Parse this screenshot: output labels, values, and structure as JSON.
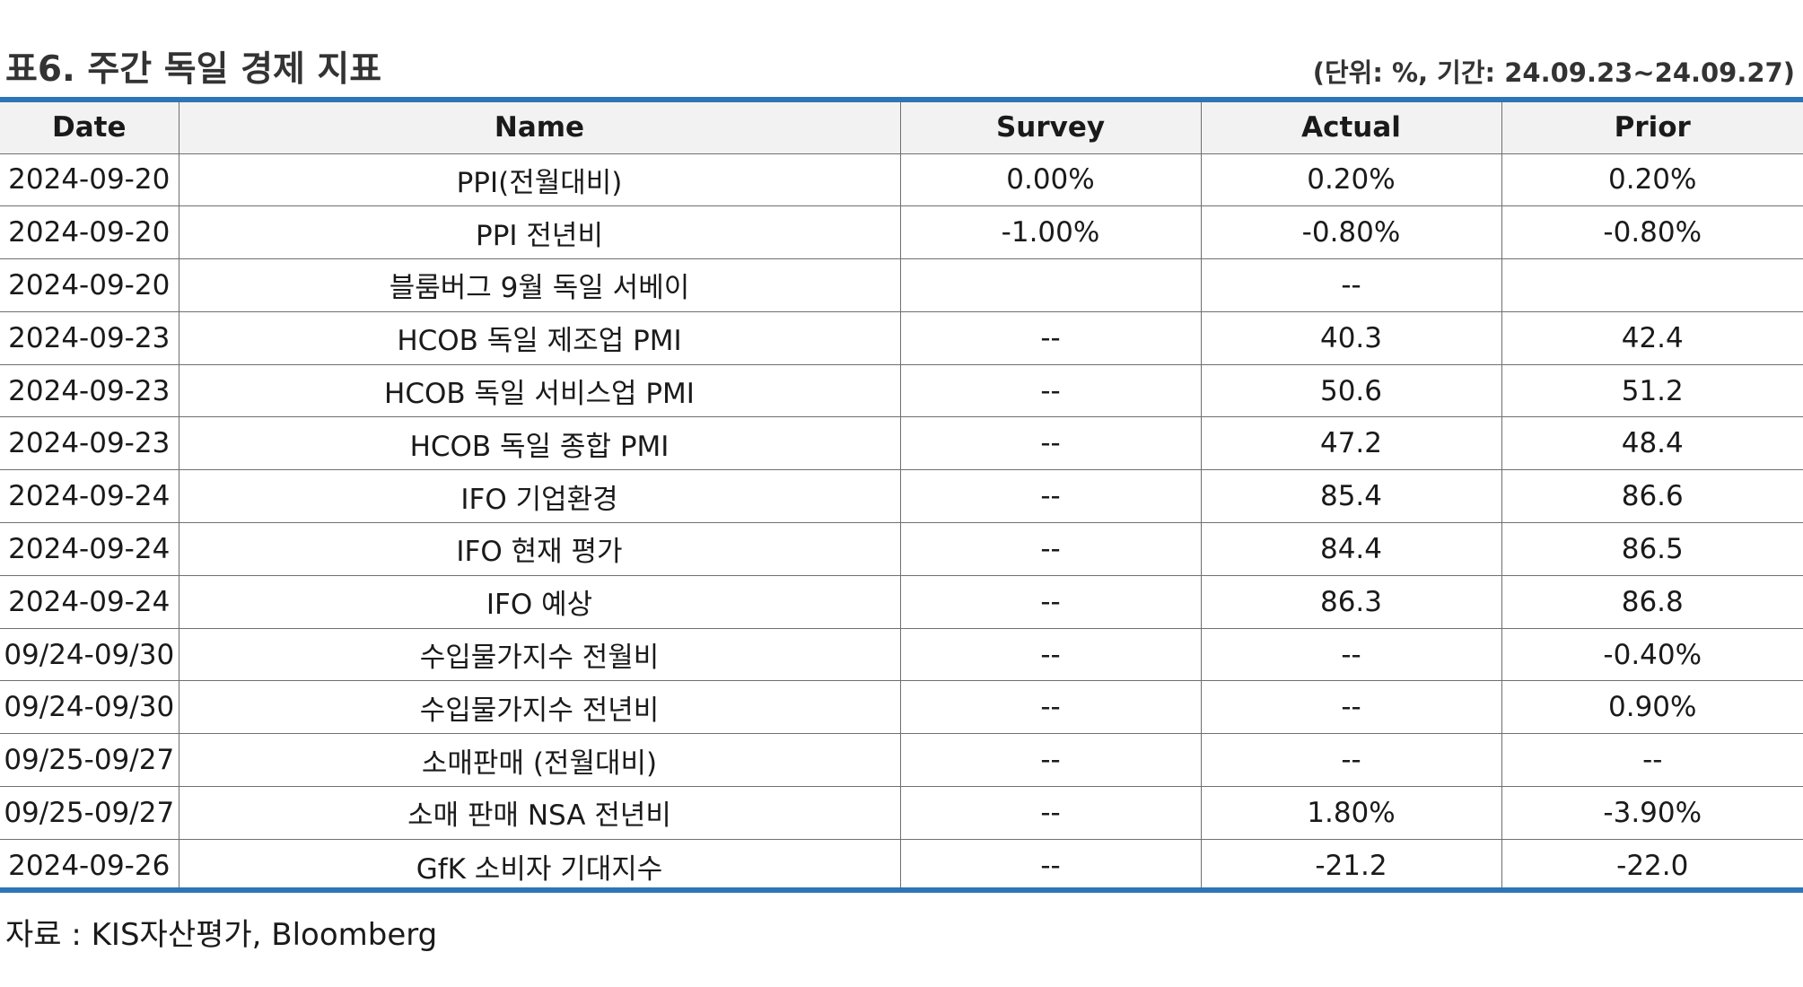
{
  "header": {
    "title": "표6. 주간 독일 경제 지표",
    "unit_note": "(단위: %, 기간: 24.09.23~24.09.27)"
  },
  "table": {
    "columns": [
      "Date",
      "Name",
      "Survey",
      "Actual",
      "Prior"
    ],
    "rows": [
      {
        "date": "2024-09-20",
        "name": "PPI(전월대비)",
        "survey": "0.00%",
        "actual": "0.20%",
        "prior": "0.20%"
      },
      {
        "date": "2024-09-20",
        "name": "PPI 전년비",
        "survey": "-1.00%",
        "actual": "-0.80%",
        "prior": "-0.80%"
      },
      {
        "date": "2024-09-20",
        "name": "블룸버그 9월 독일 서베이",
        "survey": "",
        "actual": "--",
        "prior": ""
      },
      {
        "date": "2024-09-23",
        "name": "HCOB 독일 제조업 PMI",
        "survey": "--",
        "actual": "40.3",
        "prior": "42.4"
      },
      {
        "date": "2024-09-23",
        "name": "HCOB 독일 서비스업 PMI",
        "survey": "--",
        "actual": "50.6",
        "prior": "51.2"
      },
      {
        "date": "2024-09-23",
        "name": "HCOB 독일 종합 PMI",
        "survey": "--",
        "actual": "47.2",
        "prior": "48.4"
      },
      {
        "date": "2024-09-24",
        "name": "IFO 기업환경",
        "survey": "--",
        "actual": "85.4",
        "prior": "86.6"
      },
      {
        "date": "2024-09-24",
        "name": "IFO 현재 평가",
        "survey": "--",
        "actual": "84.4",
        "prior": "86.5"
      },
      {
        "date": "2024-09-24",
        "name": "IFO 예상",
        "survey": "--",
        "actual": "86.3",
        "prior": "86.8"
      },
      {
        "date": "09/24-09/30",
        "name": "수입물가지수 전월비",
        "survey": "--",
        "actual": "--",
        "prior": "-0.40%"
      },
      {
        "date": "09/24-09/30",
        "name": "수입물가지수 전년비",
        "survey": "--",
        "actual": "--",
        "prior": "0.90%"
      },
      {
        "date": "09/25-09/27",
        "name": "소매판매 (전월대비)",
        "survey": "--",
        "actual": "--",
        "prior": "--"
      },
      {
        "date": "09/25-09/27",
        "name": "소매 판매 NSA 전년비",
        "survey": "--",
        "actual": "1.80%",
        "prior": "-3.90%"
      },
      {
        "date": "2024-09-26",
        "name": "GfK 소비자 기대지수",
        "survey": "--",
        "actual": "-21.2",
        "prior": "-22.0"
      }
    ]
  },
  "footer": {
    "source": "자료 : KIS자산평가, Bloomberg"
  },
  "colors": {
    "accent_rule": "#2e75b6",
    "header_bg": "#f2f2f2"
  }
}
